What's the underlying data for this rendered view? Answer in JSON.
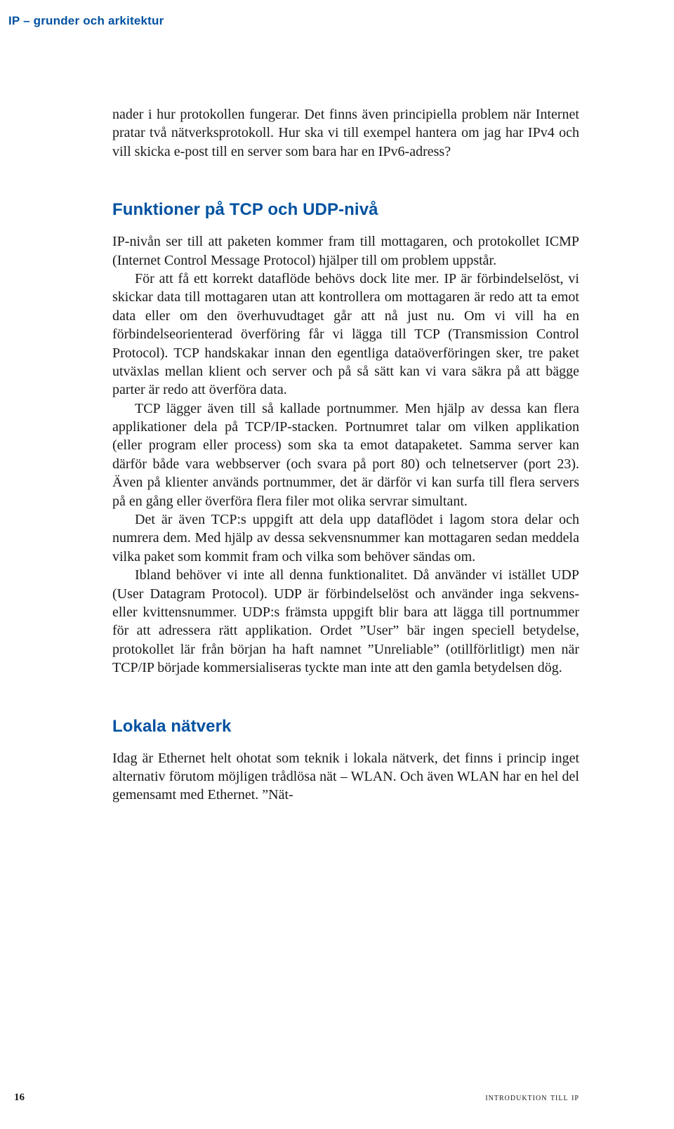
{
  "runningHeader": "IP – grunder och arkitektur",
  "intro": {
    "p1": "nader i hur protokollen fungerar. Det finns även principiella problem när Internet pratar två nätverksprotokoll. Hur ska vi till exempel hantera om jag har IPv4 och vill skicka e-post till en server som bara har en IPv6-adress?"
  },
  "section1": {
    "heading": "Funktioner på TCP och UDP-nivå",
    "p1": "IP-nivån ser till att paketen kommer fram till mottagaren, och protokollet ICMP (Internet Control Message Protocol) hjälper till om problem uppstår.",
    "p2": "För att få ett korrekt dataflöde behövs dock lite mer. IP är förbindelselöst, vi skickar data till mottagaren utan att kontrollera om mottagaren är redo att ta emot data eller om den överhuvudtaget går att nå just nu. Om vi vill ha en förbindelseorienterad överföring får vi lägga till TCP (Transmission Control Protocol). TCP handskakar innan den egentliga dataöverföringen sker, tre paket utväxlas mellan klient och server och på så sätt kan vi vara säkra på att bägge parter är redo att överföra data.",
    "p3": "TCP lägger även till så kallade portnummer. Men hjälp av dessa kan flera applikationer dela på TCP/IP-stacken. Portnumret talar om vilken applikation (eller program eller process) som ska ta emot datapaketet. Samma server kan därför både vara webbserver (och svara på port 80) och telnetserver (port 23). Även på klienter används portnummer, det är därför vi kan surfa till flera servers på en gång eller överföra flera filer mot olika servrar simultant.",
    "p4": "Det är även TCP:s uppgift att dela upp dataflödet i lagom stora delar och numrera dem. Med hjälp av dessa sekvensnummer kan mottagaren sedan meddela vilka paket som kommit fram och vilka som behöver sändas om.",
    "p5": "Ibland behöver vi inte all denna funktionalitet. Då använder vi istället UDP (User Datagram Protocol). UDP är förbindelselöst och använder inga sekvens- eller kvittensnummer. UDP:s främsta uppgift blir bara att lägga till portnummer för att adressera rätt applikation. Ordet ”User” bär ingen speciell betydelse, protokollet lär från början ha haft namnet ”Unreliable” (otillförlitligt) men när TCP/IP började kommersialiseras tyckte man inte att den gamla betydelsen dög."
  },
  "section2": {
    "heading": "Lokala nätverk",
    "p1": "Idag är Ethernet helt ohotat som teknik i lokala nätverk, det finns i princip inget alternativ förutom möjligen trådlösa nät – WLAN. Och även WLAN har en hel del gemensamt med Ethernet. ”Nät-"
  },
  "footer": {
    "pageNumber": "16",
    "title": "INTRODUKTION TILL IP"
  },
  "style": {
    "headingColor": "#0051a1",
    "bodyColor": "#1a1a1a",
    "background": "#ffffff",
    "bodyFont": "Georgia",
    "headingFont": "Arial",
    "bodyFontSize": 20,
    "headingFontSize": 24,
    "runningHeaderFontSize": 17
  }
}
